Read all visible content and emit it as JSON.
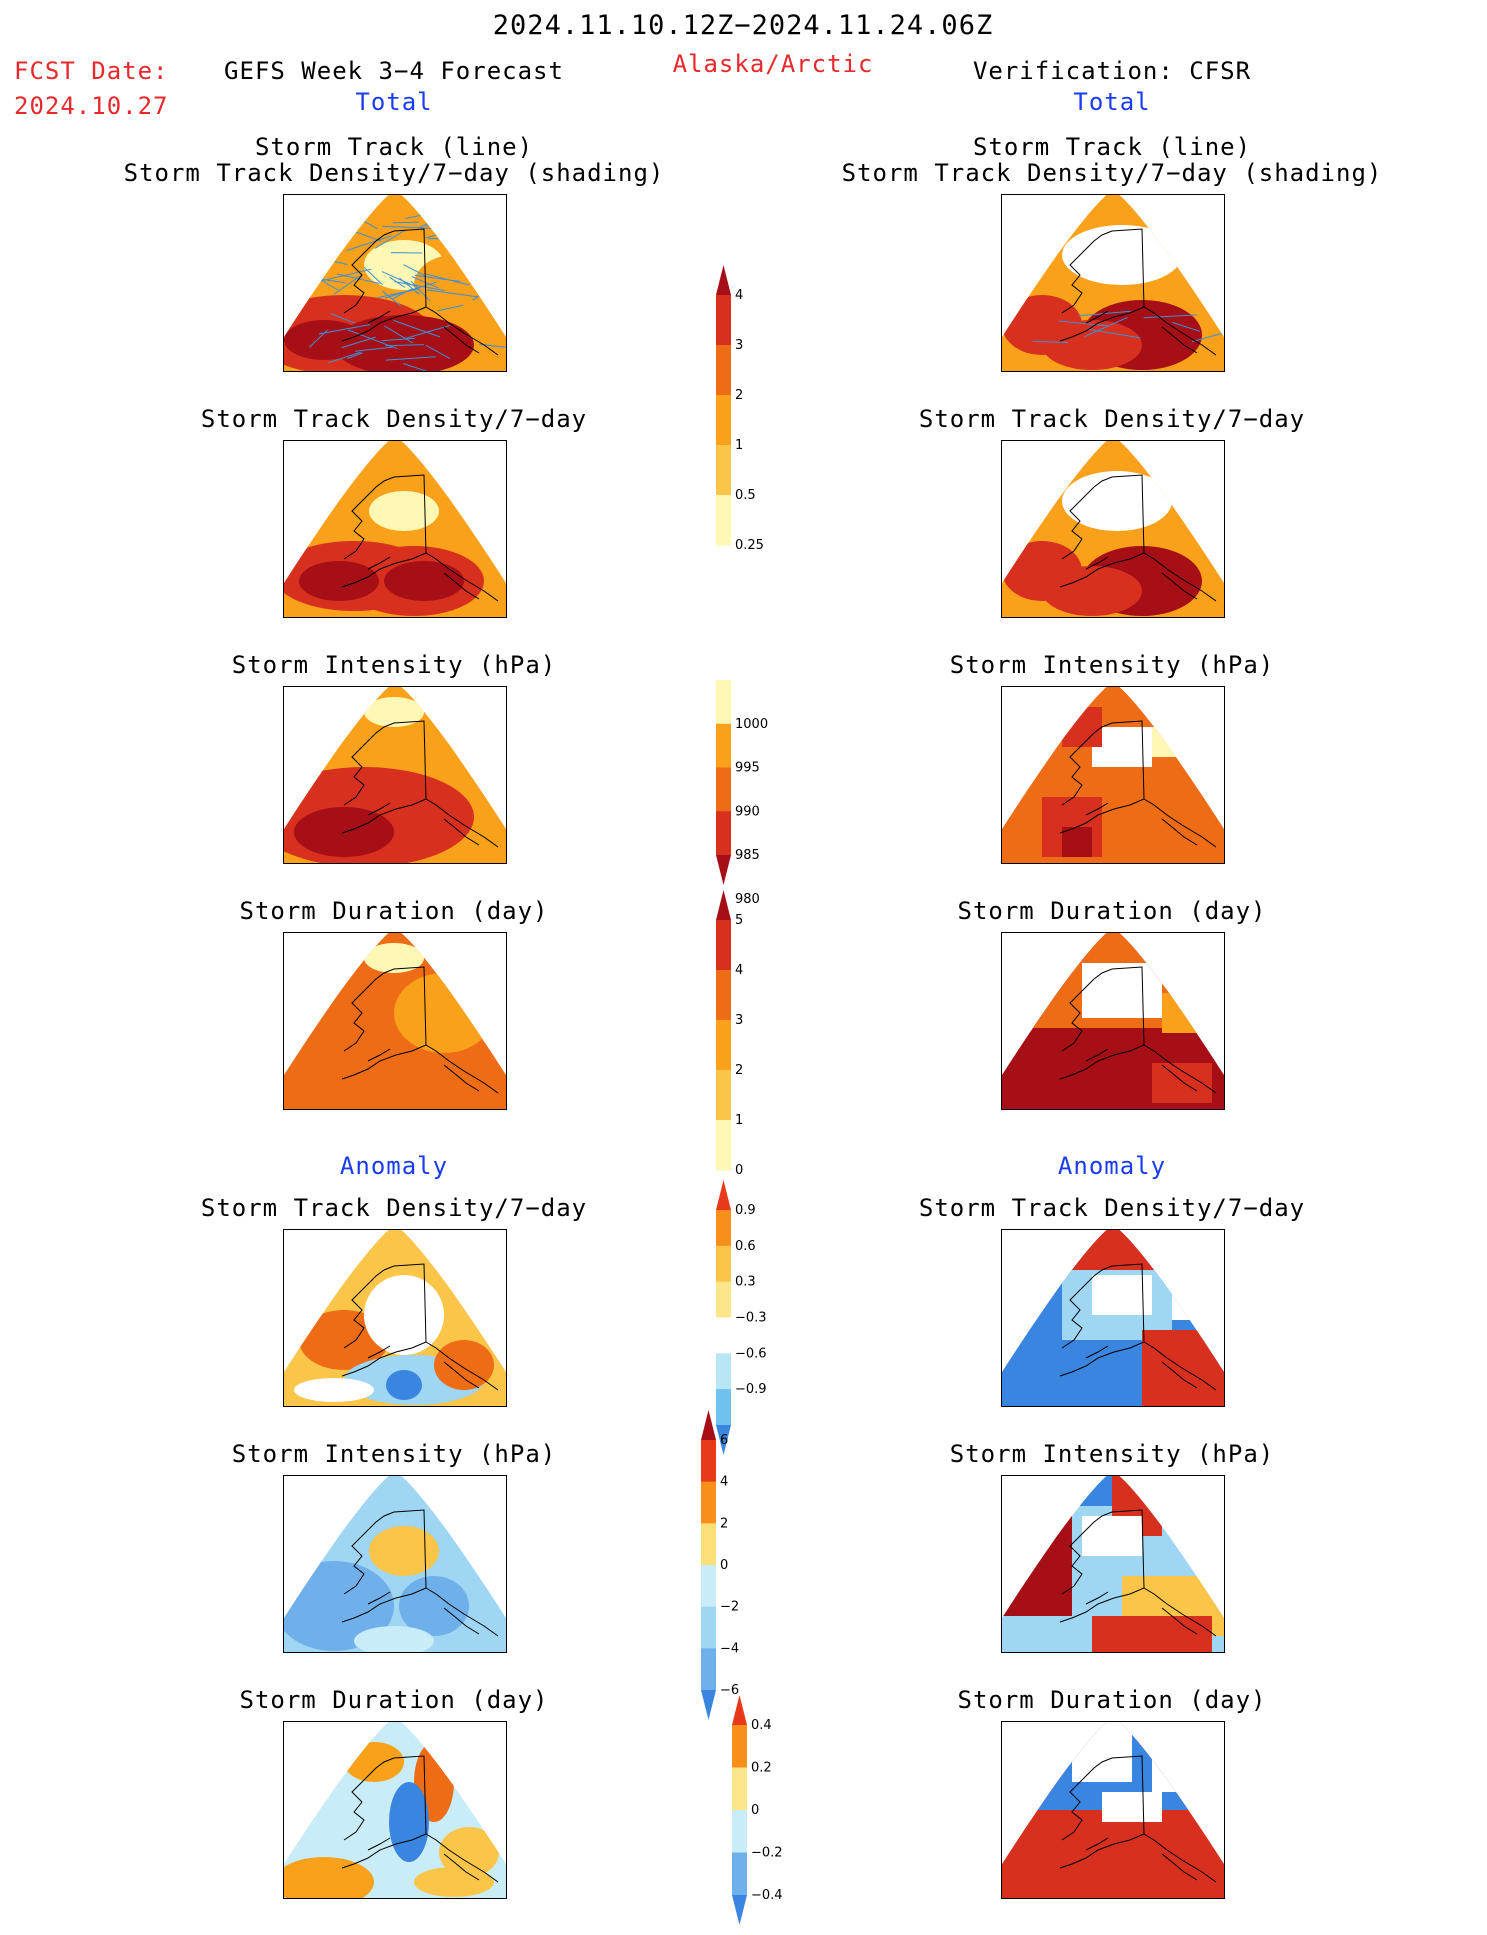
{
  "header": {
    "period": "2024.11.10.12Z−2024.11.24.06Z",
    "fcst_label": "FCST Date:",
    "fcst_date": "2024.10.27",
    "left_title": "GEFS Week 3−4 Forecast",
    "region": "Alaska/Arctic",
    "right_title": "Verification: CFSR",
    "left_section": "Total",
    "right_section": "Total",
    "anomaly_left": "Anomaly",
    "anomaly_right": "Anomaly"
  },
  "panel_titles": {
    "storm_track_line": "Storm Track (line)",
    "storm_track_shading": "Storm Track Density/7−day (shading)",
    "density": "Storm Track Density/7−day",
    "intensity": "Storm Intensity (hPa)",
    "duration": "Storm Duration (day)"
  },
  "colorbars": {
    "density_total": {
      "labels": [
        "4",
        "3",
        "2",
        "1",
        "0.5",
        "0.25"
      ],
      "colors": [
        "#a50f15",
        "#d7301f",
        "#ef6c17",
        "#f9a11b",
        "#fbc54a",
        "#fef8b4"
      ]
    },
    "intensity_total": {
      "labels": [
        "1000",
        "995",
        "990",
        "985",
        "980"
      ],
      "colors": [
        "#fef8b4",
        "#f9a11b",
        "#ef6c17",
        "#d7301f",
        "#a50f15"
      ]
    },
    "duration_total": {
      "labels": [
        "5",
        "4",
        "3",
        "2",
        "1",
        "0"
      ],
      "colors": [
        "#a50f15",
        "#d7301f",
        "#ef6c17",
        "#f9a11b",
        "#fbc54a",
        "#fef8b4"
      ]
    },
    "density_anom": {
      "labels": [
        "0.9",
        "0.6",
        "0.3",
        "−0.3",
        "−0.6",
        "−0.9"
      ],
      "colors": [
        "#e8391a",
        "#f98f1b",
        "#fbc54a",
        "#fde68a",
        "#ffffff",
        "#b9e6f5",
        "#6fc1ee",
        "#3a85e0"
      ]
    },
    "intensity_anom": {
      "labels": [
        "6",
        "4",
        "2",
        "0",
        "−2",
        "−4",
        "−6"
      ],
      "colors": [
        "#a50f15",
        "#e8391a",
        "#f98f1b",
        "#fbe07a",
        "#c8ecf8",
        "#9ed6f3",
        "#6fb0ea",
        "#3a85e0"
      ]
    },
    "duration_anom": {
      "labels": [
        "0.4",
        "0.2",
        "0",
        "−0.2",
        "−0.4"
      ],
      "colors": [
        "#e8391a",
        "#f98f1b",
        "#fde68a",
        "#c8ecf8",
        "#6fb0ea",
        "#3a85e0"
      ]
    }
  },
  "map_colors": {
    "darkred": "#a50f15",
    "red": "#d7301f",
    "orange": "#ef6c17",
    "lorange": "#f9a11b",
    "yellow": "#fbc54a",
    "pale": "#fef8b4",
    "blue": "#3a85e0",
    "lblue": "#9ed6f3",
    "track_line": "#3d8fd6"
  }
}
